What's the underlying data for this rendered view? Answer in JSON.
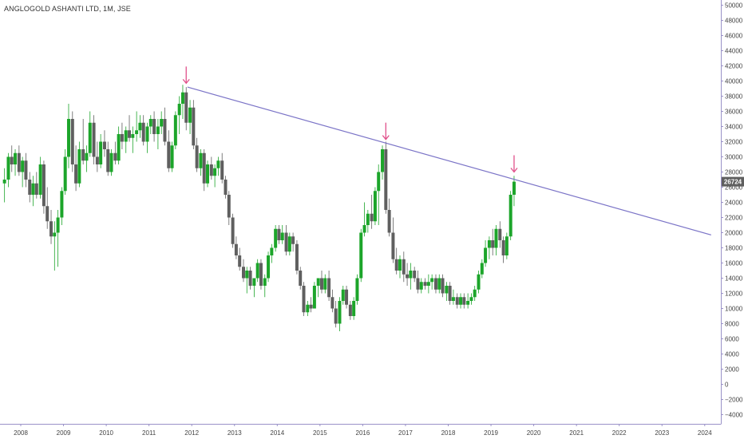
{
  "header": {
    "title": "ANGLOGOLD ASHANTI LTD, 1M, JSE"
  },
  "price_badge": "26724",
  "colors": {
    "up": "#1ca52a",
    "down": "#5f5f5f",
    "trendline": "#7b74c7",
    "arrow": "#e0508a",
    "axis": "#9a92c8",
    "badge": "#5f5f5f"
  },
  "chart_data": {
    "type": "candlestick",
    "interval": "1M",
    "x_tick_labels": [
      "2008",
      "2009",
      "2010",
      "2011",
      "2012",
      "2013",
      "2014",
      "2015",
      "2016",
      "2017",
      "2018",
      "2019",
      "2020",
      "2021",
      "2022",
      "2023",
      "2024"
    ],
    "y_tick_labels": [
      "50000",
      "48000",
      "46000",
      "44000",
      "42000",
      "40000",
      "38000",
      "36000",
      "34000",
      "32000",
      "30000",
      "28000",
      "26000",
      "24000",
      "22000",
      "20000",
      "18000",
      "16000",
      "14000",
      "12000",
      "10000",
      "8000",
      "6000",
      "4000",
      "2000",
      "0",
      "−2000",
      "−4000"
    ],
    "ylim": [
      -5000,
      51000
    ],
    "xlim": [
      2007.6,
      2024.15
    ],
    "last_price": 26724,
    "candles": [
      [
        2007.62,
        26500,
        28500,
        24000,
        27000
      ],
      [
        2007.71,
        27000,
        30500,
        26000,
        30000
      ],
      [
        2007.79,
        30000,
        31500,
        28000,
        29000
      ],
      [
        2007.87,
        29000,
        31000,
        27500,
        30500
      ],
      [
        2007.96,
        30500,
        31500,
        27500,
        28000
      ],
      [
        2008.04,
        28000,
        30000,
        26000,
        29500
      ],
      [
        2008.12,
        29500,
        30500,
        26000,
        27000
      ],
      [
        2008.21,
        27000,
        28000,
        24000,
        25000
      ],
      [
        2008.29,
        25000,
        27500,
        23500,
        26500
      ],
      [
        2008.37,
        26500,
        28000,
        24500,
        25000
      ],
      [
        2008.46,
        25000,
        30000,
        24500,
        29000
      ],
      [
        2008.54,
        29000,
        29500,
        22500,
        23500
      ],
      [
        2008.62,
        23500,
        26000,
        20500,
        21500
      ],
      [
        2008.71,
        21500,
        23000,
        18500,
        19500
      ],
      [
        2008.79,
        19500,
        21500,
        15000,
        20000
      ],
      [
        2008.87,
        20000,
        23000,
        15500,
        22000
      ],
      [
        2008.96,
        22000,
        26000,
        21000,
        25500
      ],
      [
        2009.04,
        25500,
        31000,
        25000,
        30000
      ],
      [
        2009.12,
        30000,
        37000,
        28500,
        35000
      ],
      [
        2009.21,
        35000,
        36000,
        28000,
        29000
      ],
      [
        2009.29,
        29000,
        31500,
        25500,
        26500
      ],
      [
        2009.37,
        26500,
        32000,
        26000,
        31000
      ],
      [
        2009.46,
        31000,
        35000,
        29000,
        29500
      ],
      [
        2009.54,
        29500,
        31500,
        28000,
        30500
      ],
      [
        2009.62,
        30500,
        36000,
        30000,
        34500
      ],
      [
        2009.71,
        34500,
        35500,
        29000,
        30000
      ],
      [
        2009.79,
        30000,
        32000,
        28000,
        29000
      ],
      [
        2009.87,
        29000,
        33000,
        28500,
        32000
      ],
      [
        2009.96,
        32000,
        33500,
        30000,
        31000
      ],
      [
        2010.04,
        31000,
        32000,
        27500,
        28000
      ],
      [
        2010.12,
        28000,
        31000,
        27500,
        30500
      ],
      [
        2010.21,
        30500,
        32000,
        29000,
        29500
      ],
      [
        2010.29,
        29500,
        34000,
        29000,
        33000
      ],
      [
        2010.37,
        33000,
        34500,
        31000,
        32000
      ],
      [
        2010.46,
        32000,
        34000,
        30500,
        33500
      ],
      [
        2010.54,
        33500,
        35500,
        32000,
        32500
      ],
      [
        2010.62,
        32500,
        34000,
        30500,
        33000
      ],
      [
        2010.71,
        33000,
        36000,
        32000,
        33500
      ],
      [
        2010.79,
        33500,
        35500,
        32500,
        34500
      ],
      [
        2010.87,
        34500,
        35500,
        31500,
        32000
      ],
      [
        2010.96,
        32000,
        34500,
        30500,
        34000
      ],
      [
        2011.04,
        34000,
        35500,
        33000,
        35000
      ],
      [
        2011.12,
        35000,
        36000,
        32000,
        33000
      ],
      [
        2011.21,
        33000,
        35000,
        31000,
        34000
      ],
      [
        2011.29,
        34000,
        36000,
        33000,
        35000
      ],
      [
        2011.37,
        35000,
        36500,
        31500,
        32000
      ],
      [
        2011.46,
        32000,
        33500,
        28000,
        28500
      ],
      [
        2011.54,
        28500,
        32000,
        28000,
        31500
      ],
      [
        2011.62,
        31500,
        36000,
        31000,
        35500
      ],
      [
        2011.71,
        35500,
        38000,
        33000,
        37000
      ],
      [
        2011.79,
        37000,
        39500,
        35000,
        38500
      ],
      [
        2011.87,
        38500,
        39200,
        33500,
        34500
      ],
      [
        2011.96,
        34500,
        37500,
        33000,
        36500
      ],
      [
        2012.04,
        36500,
        37500,
        31000,
        31500
      ],
      [
        2012.12,
        31500,
        32500,
        28000,
        28500
      ],
      [
        2012.21,
        28500,
        31000,
        27500,
        30500
      ],
      [
        2012.29,
        30500,
        31000,
        25500,
        26500
      ],
      [
        2012.37,
        26500,
        29500,
        26000,
        29000
      ],
      [
        2012.46,
        29000,
        30000,
        27000,
        27500
      ],
      [
        2012.54,
        27500,
        29000,
        26000,
        28500
      ],
      [
        2012.62,
        28500,
        30000,
        27500,
        29500
      ],
      [
        2012.71,
        29500,
        30500,
        26500,
        27000
      ],
      [
        2012.79,
        27000,
        27500,
        24500,
        25000
      ],
      [
        2012.87,
        25000,
        25500,
        21000,
        22000
      ],
      [
        2012.96,
        22000,
        22500,
        18000,
        18500
      ],
      [
        2013.04,
        18500,
        19500,
        16500,
        17000
      ],
      [
        2013.12,
        17000,
        18000,
        15000,
        15500
      ],
      [
        2013.21,
        15500,
        16500,
        13500,
        14000
      ],
      [
        2013.29,
        14000,
        15500,
        12000,
        15000
      ],
      [
        2013.37,
        15000,
        15500,
        12500,
        13000
      ],
      [
        2013.46,
        13000,
        13500,
        11500,
        14000
      ],
      [
        2013.54,
        14000,
        16500,
        13500,
        16000
      ],
      [
        2013.62,
        16000,
        16500,
        12500,
        13000
      ],
      [
        2013.71,
        13000,
        14500,
        11500,
        14000
      ],
      [
        2013.79,
        14000,
        17500,
        13500,
        17000
      ],
      [
        2013.87,
        17000,
        18500,
        16000,
        18000
      ],
      [
        2013.96,
        18000,
        21000,
        17500,
        20500
      ],
      [
        2014.04,
        20500,
        21000,
        18500,
        19000
      ],
      [
        2014.12,
        19000,
        21000,
        18500,
        20000
      ],
      [
        2014.21,
        20000,
        21000,
        17000,
        17500
      ],
      [
        2014.29,
        17500,
        20000,
        17000,
        19500
      ],
      [
        2014.37,
        19500,
        20000,
        17500,
        18500
      ],
      [
        2014.46,
        18500,
        19000,
        14500,
        15000
      ],
      [
        2014.54,
        15000,
        15500,
        12500,
        13000
      ],
      [
        2014.62,
        13000,
        13500,
        9000,
        9500
      ],
      [
        2014.71,
        9500,
        11000,
        9000,
        10500
      ],
      [
        2014.79,
        10500,
        11500,
        9500,
        10000
      ],
      [
        2014.87,
        10000,
        13500,
        10000,
        13000
      ],
      [
        2014.96,
        13000,
        14000,
        11500,
        14000
      ],
      [
        2015.04,
        14000,
        15000,
        12000,
        12500
      ],
      [
        2015.12,
        12500,
        14500,
        12000,
        14000
      ],
      [
        2015.21,
        14000,
        15000,
        11000,
        11500
      ],
      [
        2015.29,
        11500,
        12500,
        9500,
        10000
      ],
      [
        2015.37,
        10000,
        11000,
        7500,
        8000
      ],
      [
        2015.46,
        8000,
        11500,
        7000,
        11000
      ],
      [
        2015.54,
        11000,
        13000,
        10500,
        12500
      ],
      [
        2015.62,
        12500,
        13000,
        10000,
        10500
      ],
      [
        2015.71,
        10500,
        11000,
        8500,
        9000
      ],
      [
        2015.79,
        9000,
        11500,
        8500,
        11000
      ],
      [
        2015.87,
        11000,
        14500,
        10500,
        14000
      ],
      [
        2015.96,
        14000,
        20500,
        13500,
        20000
      ],
      [
        2016.04,
        20000,
        24000,
        19500,
        21000
      ],
      [
        2016.12,
        21000,
        23000,
        20000,
        22500
      ],
      [
        2016.21,
        22500,
        25000,
        20500,
        21500
      ],
      [
        2016.29,
        21500,
        26000,
        21000,
        25500
      ],
      [
        2016.37,
        25500,
        29000,
        21000,
        28000
      ],
      [
        2016.46,
        28000,
        31500,
        27000,
        31000
      ],
      [
        2016.54,
        31000,
        32000,
        22500,
        23000
      ],
      [
        2016.62,
        23000,
        24500,
        19500,
        20000
      ],
      [
        2016.71,
        20000,
        22000,
        16000,
        16500
      ],
      [
        2016.79,
        16500,
        18000,
        14500,
        15000
      ],
      [
        2016.87,
        15000,
        17000,
        14000,
        16500
      ],
      [
        2016.96,
        16500,
        17500,
        13500,
        14500
      ],
      [
        2017.04,
        14500,
        16000,
        13000,
        14000
      ],
      [
        2017.12,
        14000,
        16000,
        12500,
        15000
      ],
      [
        2017.21,
        15000,
        15500,
        13500,
        14000
      ],
      [
        2017.29,
        14000,
        15000,
        12000,
        12500
      ],
      [
        2017.37,
        12500,
        14000,
        12000,
        13500
      ],
      [
        2017.46,
        13500,
        14000,
        12500,
        13000
      ],
      [
        2017.54,
        13000,
        14500,
        12000,
        13500
      ],
      [
        2017.62,
        13500,
        14500,
        12500,
        14000
      ],
      [
        2017.71,
        14000,
        14500,
        12000,
        12500
      ],
      [
        2017.79,
        12500,
        14500,
        12000,
        14000
      ],
      [
        2017.87,
        14000,
        14500,
        11500,
        12000
      ],
      [
        2017.96,
        12000,
        13500,
        11000,
        13000
      ],
      [
        2018.04,
        13000,
        13500,
        10500,
        11000
      ],
      [
        2018.12,
        11000,
        12500,
        10500,
        11500
      ],
      [
        2018.21,
        11500,
        12000,
        10000,
        10500
      ],
      [
        2018.29,
        10500,
        12000,
        10000,
        11500
      ],
      [
        2018.37,
        11500,
        12000,
        10000,
        10500
      ],
      [
        2018.46,
        10500,
        12000,
        10000,
        11000
      ],
      [
        2018.54,
        11000,
        12000,
        10500,
        11500
      ],
      [
        2018.62,
        11500,
        13000,
        11000,
        12500
      ],
      [
        2018.71,
        12500,
        15000,
        12000,
        14500
      ],
      [
        2018.79,
        14500,
        16500,
        14000,
        16000
      ],
      [
        2018.87,
        16000,
        19000,
        15500,
        18000
      ],
      [
        2018.96,
        18000,
        19500,
        16500,
        19000
      ],
      [
        2019.04,
        19000,
        20500,
        17000,
        18000
      ],
      [
        2019.12,
        18000,
        21000,
        17000,
        20500
      ],
      [
        2019.21,
        20500,
        21500,
        18000,
        19000
      ],
      [
        2019.29,
        19000,
        19500,
        16000,
        17000
      ],
      [
        2019.37,
        17000,
        20000,
        16500,
        19500
      ],
      [
        2019.46,
        19500,
        25500,
        19000,
        25000
      ],
      [
        2019.54,
        25000,
        27500,
        23500,
        26724
      ]
    ],
    "trendline": {
      "x": [
        2011.9,
        2024.15
      ],
      "y": [
        39200,
        19700
      ]
    },
    "annotations": [
      {
        "type": "arrow-down",
        "x": 2011.87,
        "y": 39700
      },
      {
        "type": "arrow-down",
        "x": 2016.54,
        "y": 32300
      },
      {
        "type": "arrow-down",
        "x": 2019.54,
        "y": 28000
      }
    ]
  }
}
